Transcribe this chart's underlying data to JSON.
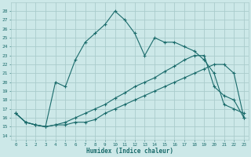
{
  "xlabel": "Humidex (Indice chaleur)",
  "bg_color": "#cce8e8",
  "grid_color": "#aacccc",
  "line_color": "#1a6b6b",
  "xlim": [
    -0.5,
    23.5
  ],
  "ylim": [
    13.5,
    29.0
  ],
  "yticks": [
    14,
    15,
    16,
    17,
    18,
    19,
    20,
    21,
    22,
    23,
    24,
    25,
    26,
    27,
    28
  ],
  "xticks": [
    0,
    1,
    2,
    3,
    4,
    5,
    6,
    7,
    8,
    9,
    10,
    11,
    12,
    13,
    14,
    15,
    16,
    17,
    18,
    19,
    20,
    21,
    22,
    23
  ],
  "s1_x": [
    0,
    1,
    2,
    3,
    4,
    5,
    6,
    7,
    8,
    9,
    10,
    11,
    12,
    13,
    14,
    15,
    16,
    17,
    18,
    19,
    20,
    21,
    22,
    23
  ],
  "s1_y": [
    16.5,
    15.5,
    15.2,
    15.0,
    15.2,
    15.5,
    16.0,
    16.5,
    17.0,
    17.5,
    18.2,
    18.8,
    19.5,
    20.0,
    20.5,
    21.2,
    21.8,
    22.5,
    23.0,
    23.0,
    19.5,
    18.5,
    18.0,
    16.0
  ],
  "s2_x": [
    0,
    1,
    2,
    3,
    4,
    5,
    6,
    7,
    8,
    9,
    10,
    11,
    12,
    13,
    14,
    15,
    16,
    17,
    18,
    19,
    20,
    21,
    22,
    23
  ],
  "s2_y": [
    16.5,
    15.5,
    15.2,
    15.0,
    15.2,
    15.2,
    15.5,
    15.5,
    15.8,
    16.5,
    17.0,
    17.5,
    18.0,
    18.5,
    19.0,
    19.5,
    20.0,
    20.5,
    21.0,
    21.5,
    22.0,
    22.0,
    21.0,
    16.0
  ],
  "s3_x": [
    0,
    1,
    2,
    3,
    4,
    5,
    6,
    7,
    8,
    9,
    10,
    11,
    12,
    13,
    14,
    15,
    16,
    17,
    18,
    19,
    20,
    21,
    22,
    23
  ],
  "s3_y": [
    16.5,
    15.5,
    15.2,
    15.0,
    20.0,
    19.5,
    22.5,
    24.5,
    25.5,
    26.5,
    28.0,
    27.0,
    25.5,
    23.0,
    25.0,
    24.5,
    24.5,
    24.0,
    23.5,
    22.5,
    21.0,
    17.5,
    17.0,
    16.5
  ]
}
